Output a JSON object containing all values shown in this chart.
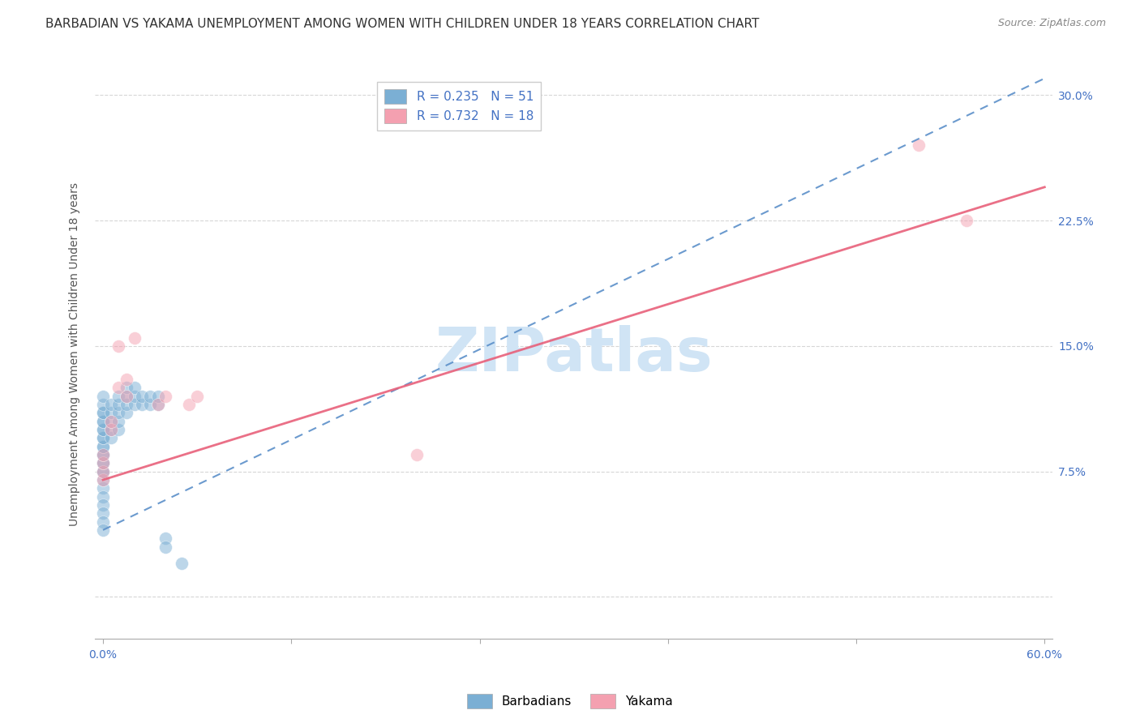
{
  "title": "BARBADIAN VS YAKAMA UNEMPLOYMENT AMONG WOMEN WITH CHILDREN UNDER 18 YEARS CORRELATION CHART",
  "source": "Source: ZipAtlas.com",
  "ylabel": "Unemployment Among Women with Children Under 18 years",
  "xlim": [
    -0.005,
    0.605
  ],
  "ylim": [
    -0.025,
    0.315
  ],
  "xticks": [
    0.0,
    0.12,
    0.24,
    0.36,
    0.48,
    0.6
  ],
  "xtick_labels": [
    "0.0%",
    "",
    "",
    "",
    "",
    "60.0%"
  ],
  "yticks": [
    0.0,
    0.075,
    0.15,
    0.225,
    0.3
  ],
  "ytick_labels_right": [
    "",
    "7.5%",
    "15.0%",
    "22.5%",
    "30.0%"
  ],
  "barbadian_R": 0.235,
  "barbadian_N": 51,
  "yakama_R": 0.732,
  "yakama_N": 18,
  "barbadian_color": "#7bafd4",
  "yakama_color": "#f4a0b0",
  "barbadian_line_color": "#5b8fc9",
  "yakama_line_color": "#e8607a",
  "watermark": "ZIPatlas",
  "watermark_color": "#d0e4f5",
  "tick_color": "#4472c4",
  "bg_color": "#ffffff",
  "grid_color": "#cccccc",
  "title_fontsize": 11,
  "axis_fontsize": 10,
  "tick_fontsize": 10,
  "legend_fontsize": 11,
  "scatter_size": 130,
  "scatter_alpha": 0.5,
  "barbadian_x": [
    0.0,
    0.0,
    0.0,
    0.0,
    0.0,
    0.0,
    0.0,
    0.0,
    0.0,
    0.0,
    0.0,
    0.0,
    0.0,
    0.0,
    0.0,
    0.0,
    0.0,
    0.0,
    0.0,
    0.0,
    0.0,
    0.0,
    0.0,
    0.0,
    0.0,
    0.005,
    0.005,
    0.005,
    0.005,
    0.005,
    0.01,
    0.01,
    0.01,
    0.01,
    0.01,
    0.015,
    0.015,
    0.015,
    0.015,
    0.02,
    0.02,
    0.02,
    0.025,
    0.025,
    0.03,
    0.03,
    0.035,
    0.035,
    0.04,
    0.04,
    0.05
  ],
  "barbadian_y": [
    0.065,
    0.07,
    0.075,
    0.075,
    0.08,
    0.08,
    0.085,
    0.085,
    0.09,
    0.09,
    0.095,
    0.095,
    0.1,
    0.1,
    0.105,
    0.105,
    0.11,
    0.11,
    0.115,
    0.12,
    0.06,
    0.055,
    0.05,
    0.045,
    0.04,
    0.095,
    0.1,
    0.105,
    0.11,
    0.115,
    0.1,
    0.105,
    0.11,
    0.115,
    0.12,
    0.11,
    0.115,
    0.12,
    0.125,
    0.115,
    0.12,
    0.125,
    0.115,
    0.12,
    0.115,
    0.12,
    0.115,
    0.12,
    0.035,
    0.03,
    0.02
  ],
  "yakama_x": [
    0.0,
    0.0,
    0.0,
    0.0,
    0.005,
    0.005,
    0.01,
    0.01,
    0.015,
    0.015,
    0.02,
    0.035,
    0.04,
    0.055,
    0.06,
    0.2,
    0.52,
    0.55
  ],
  "yakama_y": [
    0.07,
    0.075,
    0.08,
    0.085,
    0.1,
    0.105,
    0.125,
    0.15,
    0.12,
    0.13,
    0.155,
    0.115,
    0.12,
    0.115,
    0.12,
    0.085,
    0.27,
    0.225
  ],
  "barbadian_trend_x": [
    0.0,
    0.6
  ],
  "barbadian_trend_y": [
    0.04,
    0.31
  ],
  "yakama_trend_x": [
    0.0,
    0.6
  ],
  "yakama_trend_y": [
    0.07,
    0.245
  ]
}
